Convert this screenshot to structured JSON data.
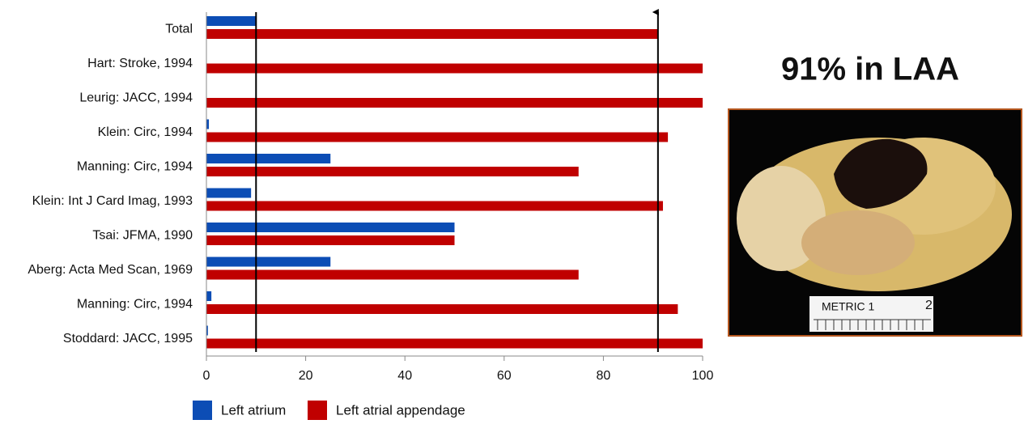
{
  "chart_data": {
    "type": "hbar",
    "headline": "91% in LAA",
    "categories": [
      "Total",
      "Hart: Stroke, 1994",
      "Leurig: JACC, 1994",
      "Klein: Circ, 1994",
      "Manning: Circ, 1994",
      "Klein: Int J Card Imag, 1993",
      "Tsai: JFMA, 1990",
      "Aberg: Acta Med Scan, 1969",
      "Manning: Circ, 1994",
      "Stoddard: JACC, 1995"
    ],
    "series": [
      {
        "name": "Left atrium",
        "color": "#0c4db5",
        "values": [
          10,
          0,
          0,
          0.5,
          25,
          9,
          50,
          25,
          1,
          0.3
        ]
      },
      {
        "name": "Left atrial appendage",
        "color": "#c00000",
        "values": [
          91,
          100,
          100,
          93,
          75,
          92,
          50,
          75,
          95,
          100
        ]
      }
    ],
    "reference_lines": [
      10,
      91
    ],
    "xlim": [
      0,
      100
    ],
    "xticks": [
      0,
      20,
      40,
      60,
      80,
      100
    ],
    "legend": "bottom",
    "photo_ruler_labels": [
      "METRIC 1",
      "2"
    ]
  }
}
